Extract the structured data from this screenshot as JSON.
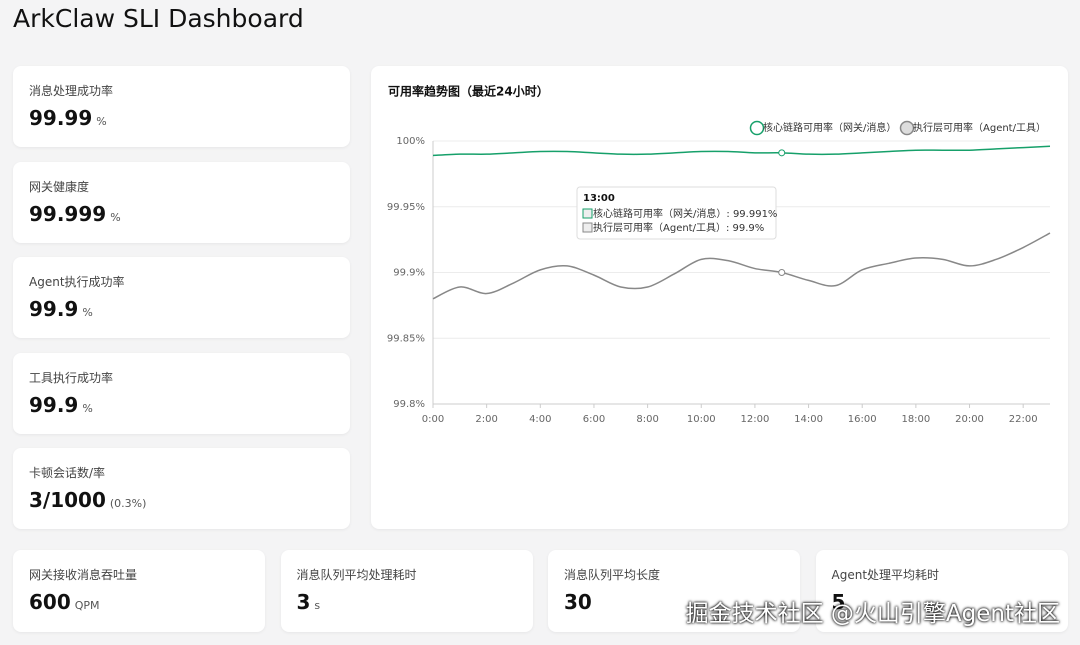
{
  "header": {
    "title": "ArkClaw SLI Dashboard"
  },
  "cards": [
    {
      "label": "消息处理成功率",
      "value": "99.99",
      "unit": "%"
    },
    {
      "label": "网关健康度",
      "value": "99.999",
      "unit": "%"
    },
    {
      "label": "Agent执行成功率",
      "value": "99.9",
      "unit": "%"
    },
    {
      "label": "工具执行成功率",
      "value": "99.9",
      "unit": "%"
    },
    {
      "label": "卡顿会话数/率",
      "value": "3/1000",
      "unit": "(0.3%)"
    }
  ],
  "chart_data": {
    "type": "line",
    "title": "可用率趋势图（最近24小时）",
    "x": [
      0,
      1,
      2,
      3,
      4,
      5,
      6,
      7,
      8,
      9,
      10,
      11,
      12,
      13,
      14,
      15,
      16,
      17,
      18,
      19,
      20,
      21,
      22,
      23
    ],
    "xlim": [
      0,
      23
    ],
    "xticks": [
      {
        "value": 0,
        "label": "0:00"
      },
      {
        "value": 2,
        "label": "2:00"
      },
      {
        "value": 4,
        "label": "4:00"
      },
      {
        "value": 6,
        "label": "6:00"
      },
      {
        "value": 8,
        "label": "8:00"
      },
      {
        "value": 10,
        "label": "10:00"
      },
      {
        "value": 12,
        "label": "12:00"
      },
      {
        "value": 14,
        "label": "14:00"
      },
      {
        "value": 16,
        "label": "16:00"
      },
      {
        "value": 18,
        "label": "18:00"
      },
      {
        "value": 20,
        "label": "20:00"
      },
      {
        "value": 22,
        "label": "22:00"
      }
    ],
    "ylim": [
      99.8,
      100
    ],
    "yticks": [
      {
        "value": 99.8,
        "label": "99.8%"
      },
      {
        "value": 99.85,
        "label": "99.85%"
      },
      {
        "value": 99.9,
        "label": "99.9%"
      },
      {
        "value": 99.95,
        "label": "99.95%"
      },
      {
        "value": 100,
        "label": "100%"
      }
    ],
    "grid": true,
    "legend": "top-right",
    "series": [
      {
        "name": "核心链路可用率（网关/消息）",
        "color": "#16a06a",
        "values": [
          99.989,
          99.99,
          99.99,
          99.991,
          99.992,
          99.992,
          99.991,
          99.99,
          99.99,
          99.991,
          99.992,
          99.992,
          99.991,
          99.991,
          99.99,
          99.99,
          99.991,
          99.992,
          99.993,
          99.993,
          99.993,
          99.994,
          99.995,
          99.996
        ]
      },
      {
        "name": "执行层可用率（Agent/工具）",
        "color": "#888888",
        "values": [
          99.88,
          99.889,
          99.884,
          99.892,
          99.902,
          99.905,
          99.898,
          99.889,
          99.889,
          99.899,
          99.91,
          99.909,
          99.903,
          99.9,
          99.894,
          99.89,
          99.902,
          99.907,
          99.911,
          99.91,
          99.905,
          99.91,
          99.919,
          99.93
        ]
      }
    ],
    "tooltip": {
      "index": 13,
      "title": "13:00",
      "separator": ": ",
      "value_labels": [
        "99.991%",
        "99.9%"
      ]
    }
  },
  "bottom_cards": [
    {
      "label": "网关接收消息吞吐量",
      "value": "600",
      "unit": "QPM"
    },
    {
      "label": "消息队列平均处理耗时",
      "value": "3",
      "unit": "s"
    },
    {
      "label": "消息队列平均长度",
      "value": "30"
    },
    {
      "label": "Agent处理平均耗时",
      "value": "5"
    }
  ],
  "watermark": "掘金技术社区 @火山引擎Agent社区"
}
